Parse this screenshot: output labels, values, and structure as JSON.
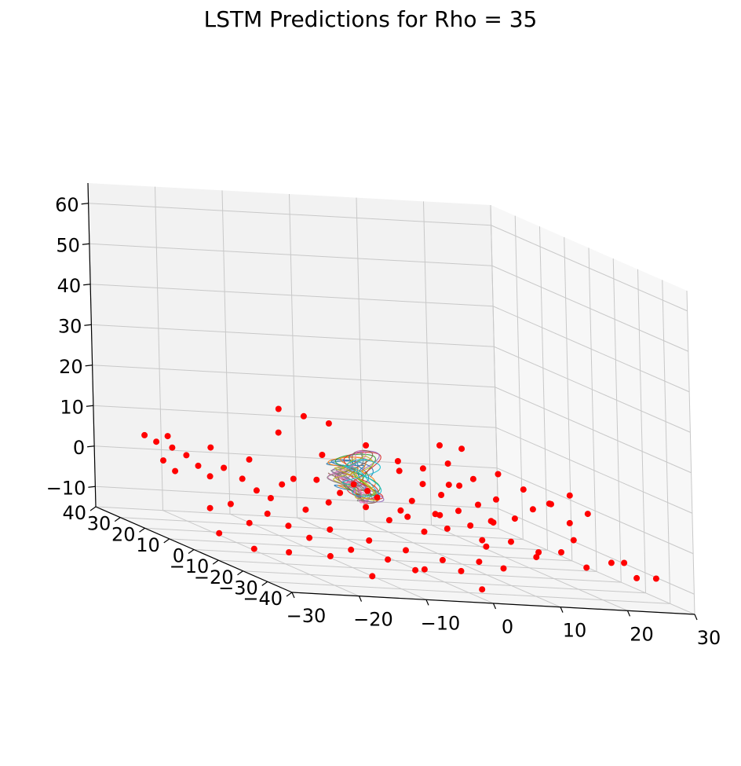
{
  "chart_data": {
    "type": "scatter",
    "title": "LSTM Predictions for Rho = 35",
    "projection": "3d",
    "grid": true,
    "xlim": [
      -30,
      30
    ],
    "ylim": [
      -40,
      40
    ],
    "zlim": [
      -15,
      65
    ],
    "x_ticks": [
      "−30",
      "−20",
      "−10",
      "0",
      "10",
      "20",
      "30"
    ],
    "y_ticks": [
      "−40",
      "−30",
      "−20",
      "−10",
      "0",
      "10",
      "20",
      "30",
      "40"
    ],
    "z_ticks": [
      "−10",
      "0",
      "10",
      "20",
      "30",
      "40",
      "50",
      "60"
    ],
    "points_color": "#ff0000",
    "trajectory_colors": [
      "#1f77b4",
      "#ff7f0e",
      "#2ca02c",
      "#d62728",
      "#9467bd",
      "#8c564b",
      "#e377c2",
      "#7f7f7f",
      "#bcbd22",
      "#17becf"
    ],
    "points": [
      [
        -25,
        33,
        5
      ],
      [
        -24,
        31,
        4
      ],
      [
        -23,
        29,
        6
      ],
      [
        -22,
        30,
        3
      ],
      [
        -21,
        27,
        2
      ],
      [
        -20,
        25,
        0
      ],
      [
        -19,
        23,
        -2
      ],
      [
        -18,
        20,
        1
      ],
      [
        -16,
        18,
        -1
      ],
      [
        -15,
        15,
        -3
      ],
      [
        -14,
        12,
        -4
      ],
      [
        -13,
        10,
        0
      ],
      [
        -12,
        8,
        2
      ],
      [
        -11,
        6,
        -5
      ],
      [
        -10,
        4,
        3
      ],
      [
        -9,
        2,
        -2
      ],
      [
        -8,
        0,
        1
      ],
      [
        -7,
        -3,
        4
      ],
      [
        -6,
        -5,
        -1
      ],
      [
        -5,
        -7,
        2
      ],
      [
        -4,
        -9,
        -3
      ],
      [
        -3,
        -11,
        0
      ],
      [
        -2,
        -13,
        3
      ],
      [
        -1,
        -15,
        -4
      ],
      [
        0,
        -17,
        1
      ],
      [
        1,
        -19,
        -2
      ],
      [
        2,
        -21,
        3
      ],
      [
        3,
        -23,
        0
      ],
      [
        4,
        -25,
        -3
      ],
      [
        5,
        -27,
        2
      ],
      [
        -22,
        15,
        -8
      ],
      [
        -20,
        12,
        -6
      ],
      [
        -18,
        10,
        -10
      ],
      [
        -16,
        8,
        -7
      ],
      [
        -14,
        5,
        -9
      ],
      [
        -12,
        2,
        -11
      ],
      [
        -10,
        -1,
        -8
      ],
      [
        -8,
        -4,
        -12
      ],
      [
        -6,
        -6,
        -9
      ],
      [
        -4,
        -8,
        -13
      ],
      [
        -2,
        -10,
        -10
      ],
      [
        0,
        -12,
        -14
      ],
      [
        2,
        -14,
        -11
      ],
      [
        4,
        -16,
        -13
      ],
      [
        6,
        -18,
        -10
      ],
      [
        8,
        10,
        2
      ],
      [
        10,
        8,
        0
      ],
      [
        12,
        6,
        3
      ],
      [
        14,
        4,
        -1
      ],
      [
        16,
        2,
        1
      ],
      [
        18,
        0,
        -3
      ],
      [
        20,
        -2,
        0
      ],
      [
        22,
        -4,
        2
      ],
      [
        24,
        -6,
        -2
      ],
      [
        26,
        -8,
        1
      ],
      [
        8,
        20,
        5
      ],
      [
        11,
        18,
        4
      ],
      [
        14,
        16,
        6
      ],
      [
        17,
        14,
        3
      ],
      [
        20,
        12,
        5
      ],
      [
        23,
        10,
        2
      ],
      [
        25,
        5,
        0
      ],
      [
        27,
        2,
        3
      ],
      [
        10,
        -10,
        -8
      ],
      [
        13,
        -12,
        -6
      ],
      [
        16,
        -14,
        -9
      ],
      [
        19,
        -16,
        -7
      ],
      [
        22,
        -18,
        -10
      ],
      [
        25,
        -20,
        -8
      ],
      [
        28,
        -22,
        -11
      ],
      [
        -6,
        30,
        14
      ],
      [
        -3,
        28,
        13
      ],
      [
        0,
        26,
        12
      ],
      [
        -9,
        22,
        10
      ],
      [
        -27,
        20,
        2
      ],
      [
        -26,
        18,
        0
      ],
      [
        -24,
        6,
        -12
      ],
      [
        -21,
        0,
        -14
      ],
      [
        -18,
        -6,
        -13
      ],
      [
        -14,
        -12,
        -12
      ],
      [
        -10,
        -18,
        -15
      ],
      [
        -5,
        -22,
        -12
      ],
      [
        2,
        -30,
        -14
      ],
      [
        6,
        -28,
        -9
      ],
      [
        12,
        -26,
        -5
      ],
      [
        18,
        -24,
        -2
      ],
      [
        24,
        -28,
        -6
      ],
      [
        28,
        -30,
        -9
      ],
      [
        4,
        22,
        8
      ],
      [
        6,
        14,
        4
      ],
      [
        -4,
        18,
        6
      ],
      [
        -1,
        8,
        0
      ],
      [
        2,
        0,
        -4
      ],
      [
        5,
        -5,
        -2
      ],
      [
        9,
        2,
        4
      ],
      [
        13,
        -4,
        -3
      ],
      [
        15,
        22,
        9
      ],
      [
        19,
        24,
        8
      ],
      [
        -17,
        28,
        4
      ],
      [
        -12,
        26,
        2
      ]
    ]
  }
}
